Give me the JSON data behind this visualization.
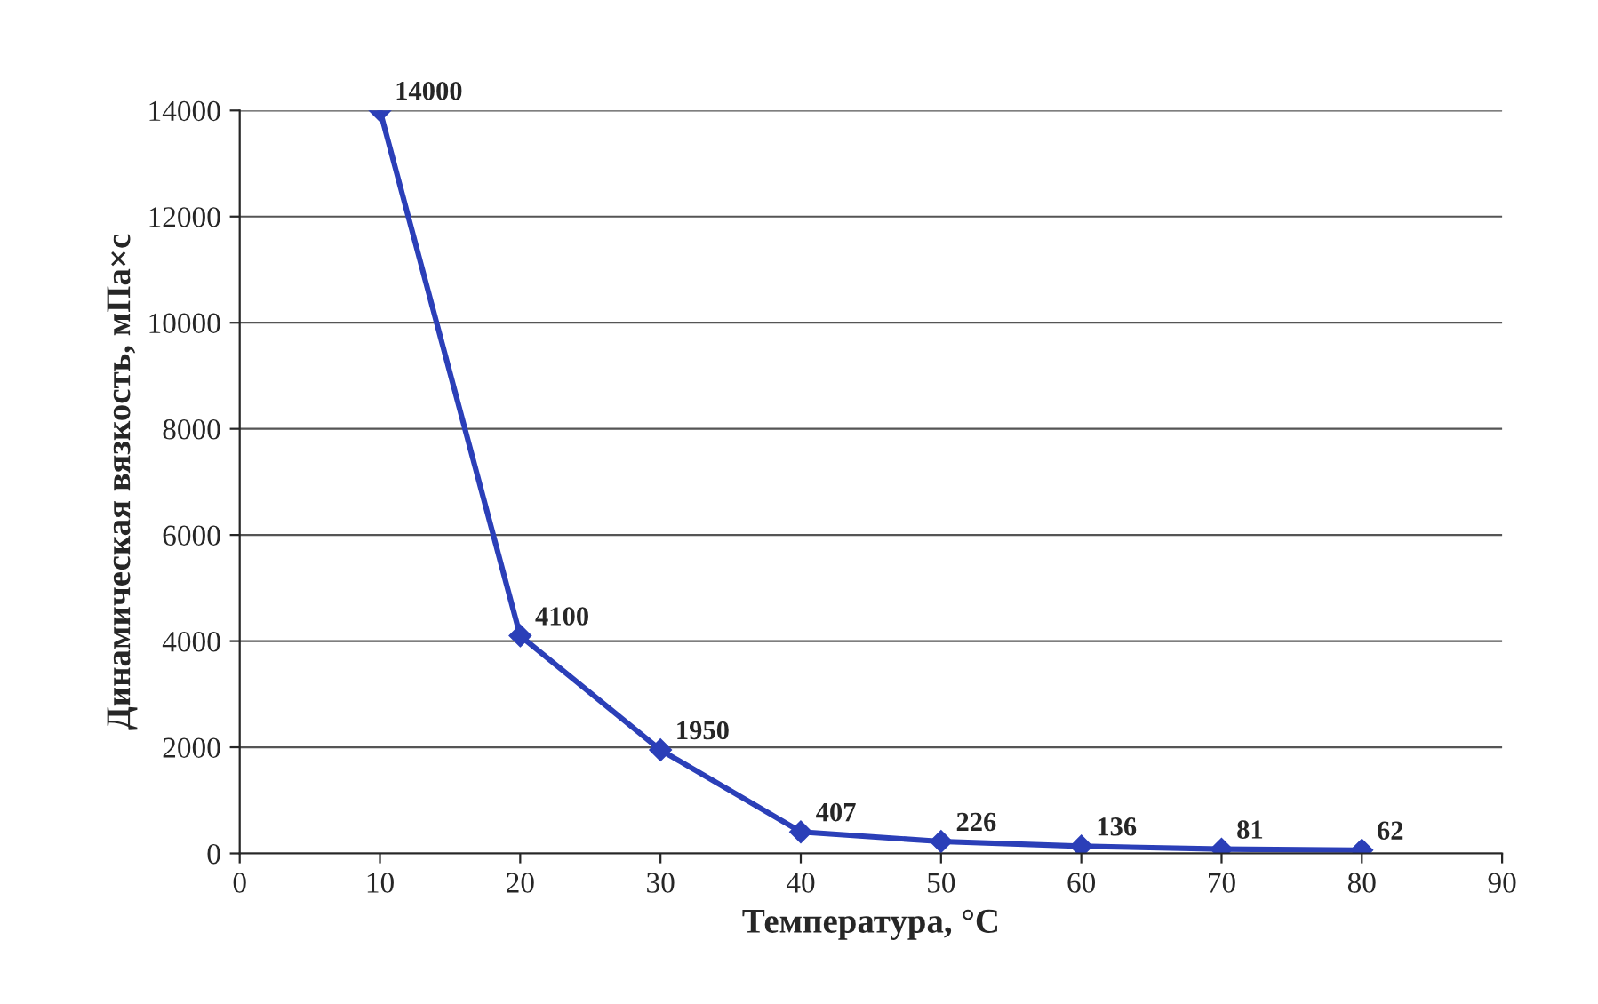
{
  "chart_data": {
    "type": "line",
    "xlabel": "Температура, °С",
    "ylabel": "Динамическая вязкость, мПа×с",
    "x": [
      10,
      20,
      30,
      40,
      50,
      60,
      70,
      80
    ],
    "series": [
      {
        "color": "#2b3fb8",
        "values": [
          14000,
          4100,
          1950,
          407,
          226,
          136,
          81,
          62
        ]
      }
    ],
    "data_labels": true,
    "marker": "diamond",
    "line_style": "solid",
    "grid": "y",
    "xlim": [
      0,
      90
    ],
    "xticks": [
      0,
      10,
      20,
      30,
      40,
      50,
      60,
      70,
      80,
      90
    ],
    "ylim": [
      0,
      14000
    ],
    "yticks": [
      0,
      2000,
      4000,
      6000,
      8000,
      10000,
      12000,
      14000
    ]
  }
}
